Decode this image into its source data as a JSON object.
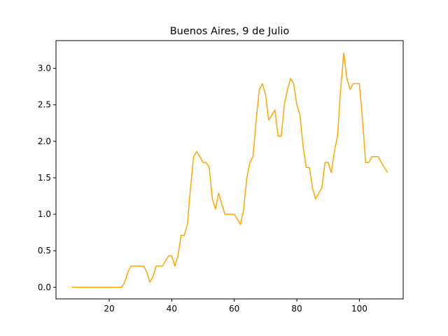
{
  "chart_data": {
    "type": "line",
    "title": "Buenos Aires, 9 de Julio",
    "xlabel": "",
    "ylabel": "",
    "xlim": [
      3,
      114
    ],
    "ylim": [
      -0.16,
      3.38
    ],
    "xticks": [
      20,
      40,
      60,
      80,
      100
    ],
    "yticks": [
      0.0,
      0.5,
      1.0,
      1.5,
      2.0,
      2.5,
      3.0
    ],
    "xtick_labels": [
      "20",
      "40",
      "60",
      "80",
      "100"
    ],
    "ytick_labels": [
      "0.0",
      "0.5",
      "1.0",
      "1.5",
      "2.0",
      "2.5",
      "3.0"
    ],
    "grid": false,
    "legend": "none",
    "series": [
      {
        "color": "#ffa500",
        "x": [
          8,
          9,
          10,
          11,
          12,
          13,
          14,
          15,
          16,
          17,
          18,
          19,
          20,
          21,
          22,
          23,
          24,
          25,
          26,
          27,
          28,
          29,
          30,
          31,
          32,
          33,
          34,
          35,
          36,
          37,
          38,
          39,
          40,
          41,
          42,
          43,
          44,
          45,
          46,
          47,
          48,
          49,
          50,
          51,
          52,
          53,
          54,
          55,
          56,
          57,
          58,
          59,
          60,
          61,
          62,
          63,
          64,
          65,
          66,
          67,
          68,
          69,
          70,
          71,
          72,
          73,
          74,
          75,
          76,
          77,
          78,
          79,
          80,
          81,
          82,
          83,
          84,
          85,
          86,
          87,
          88,
          89,
          90,
          91,
          92,
          93,
          94,
          95,
          96,
          97,
          98,
          99,
          100,
          101,
          102,
          103,
          104,
          105,
          106,
          107,
          108,
          109
        ],
        "y": [
          0,
          0,
          0,
          0,
          0,
          0,
          0,
          0,
          0,
          0,
          0,
          0,
          0,
          0,
          0,
          0,
          0,
          0.07,
          0.21,
          0.29,
          0.29,
          0.29,
          0.29,
          0.29,
          0.21,
          0.07,
          0.14,
          0.29,
          0.29,
          0.29,
          0.36,
          0.43,
          0.43,
          0.29,
          0.43,
          0.71,
          0.71,
          0.86,
          1.36,
          1.79,
          1.86,
          1.79,
          1.71,
          1.71,
          1.64,
          1.21,
          1.07,
          1.29,
          1.14,
          1.0,
          1.0,
          1.0,
          1.0,
          0.93,
          0.86,
          1.07,
          1.5,
          1.71,
          1.79,
          2.29,
          2.71,
          2.79,
          2.64,
          2.29,
          2.36,
          2.43,
          2.07,
          2.07,
          2.5,
          2.71,
          2.86,
          2.79,
          2.5,
          2.36,
          1.93,
          1.64,
          1.64,
          1.36,
          1.21,
          1.29,
          1.36,
          1.71,
          1.71,
          1.57,
          1.86,
          2.07,
          2.71,
          3.21,
          2.86,
          2.71,
          2.79,
          2.79,
          2.79,
          2.29,
          1.71,
          1.71,
          1.79,
          1.79,
          1.79,
          1.71,
          1.64,
          1.57
        ]
      }
    ]
  }
}
